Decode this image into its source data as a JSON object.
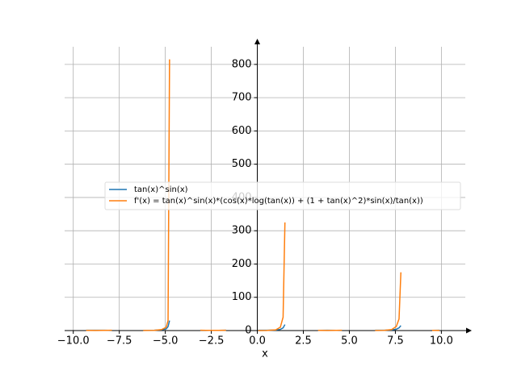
{
  "chart_data": {
    "type": "line",
    "xlabel": "x",
    "x": [
      -9.3,
      -8.8,
      -8.3,
      -7.9,
      null,
      -6.2,
      -5.6,
      -5.2,
      -4.95,
      -4.85,
      -4.77,
      null,
      -3.1,
      -2.6,
      -2.1,
      -1.7,
      null,
      0.05,
      0.5,
      1.0,
      1.25,
      1.4,
      1.5,
      null,
      3.3,
      3.8,
      4.3,
      4.6,
      null,
      6.4,
      6.9,
      7.3,
      7.55,
      7.7,
      7.8,
      null,
      9.5,
      9.9
    ],
    "series": [
      {
        "name": "tan(x)^sin(x)",
        "color": "#1f77b4",
        "values": [
          1,
          1,
          0.8,
          0.3,
          null,
          0.6,
          0.9,
          2,
          5,
          12,
          30,
          null,
          0.3,
          0.5,
          0.6,
          0.8,
          null,
          1,
          0.9,
          1.6,
          3.5,
          8,
          18,
          null,
          0.5,
          0.8,
          0.7,
          0.3,
          null,
          1,
          0.9,
          1.7,
          4,
          8,
          15,
          null,
          0.5,
          1
        ]
      },
      {
        "name": "f'(x) = tan(x)^sin(x)*(cos(x)*log(tan(x)) + (1 + tan(x)^2)*sin(x)/tan(x))",
        "color": "#ff7f0e",
        "values": [
          0.5,
          0.3,
          0.5,
          1,
          null,
          0.3,
          0.5,
          3,
          10,
          30,
          815,
          null,
          1,
          0.5,
          0.5,
          1,
          null,
          0,
          0.3,
          2,
          10,
          40,
          325,
          null,
          0.5,
          0.3,
          0.5,
          1,
          null,
          0.2,
          0.5,
          3,
          12,
          35,
          175,
          null,
          0.5,
          0.3
        ]
      }
    ],
    "xlim": [
      -10.47,
      11.3
    ],
    "ylim": [
      0,
      853
    ],
    "xticks": [
      {
        "value": -10,
        "label": "−10.0"
      },
      {
        "value": -7.5,
        "label": "−7.5"
      },
      {
        "value": -5,
        "label": "−5.0"
      },
      {
        "value": -2.5,
        "label": "−2.5"
      },
      {
        "value": 0,
        "label": "0.0"
      },
      {
        "value": 2.5,
        "label": "2.5"
      },
      {
        "value": 5,
        "label": "5.0"
      },
      {
        "value": 7.5,
        "label": "7.5"
      },
      {
        "value": 10,
        "label": "10.0"
      }
    ],
    "yticks": [
      0,
      100,
      200,
      300,
      400,
      500,
      600,
      700,
      800
    ],
    "grid": true
  }
}
